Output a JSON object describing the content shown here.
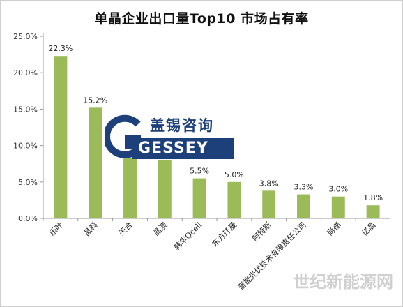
{
  "chart_data": {
    "type": "bar",
    "title": "单晶企业出口量Top10 市场占有率",
    "categories": [
      "乐叶",
      "晶科",
      "天合",
      "晶澳",
      "韩华Qcell",
      "东方环晟",
      "阿特斯",
      "晋能光伏技术有限责任公司",
      "尚德",
      "亿晶"
    ],
    "values": [
      22.3,
      15.2,
      8.3,
      8.0,
      5.5,
      5.0,
      3.8,
      3.3,
      3.0,
      1.8
    ],
    "value_labels": [
      "22.3%",
      "15.2%",
      "",
      "",
      "5.5%",
      "5.0%",
      "3.8%",
      "3.3%",
      "3.0%",
      "1.8%"
    ],
    "yticks": [
      "0.0%",
      "5.0%",
      "10.0%",
      "15.0%",
      "20.0%",
      "25.0%"
    ],
    "ylim": [
      0,
      25
    ],
    "xlabel": "",
    "ylabel": "",
    "grid": false,
    "bar_color": "#9bbb59"
  },
  "watermark": {
    "company_cn": "盖锡咨询",
    "company_en": "GESSEY",
    "source": "世纪新能源网"
  }
}
